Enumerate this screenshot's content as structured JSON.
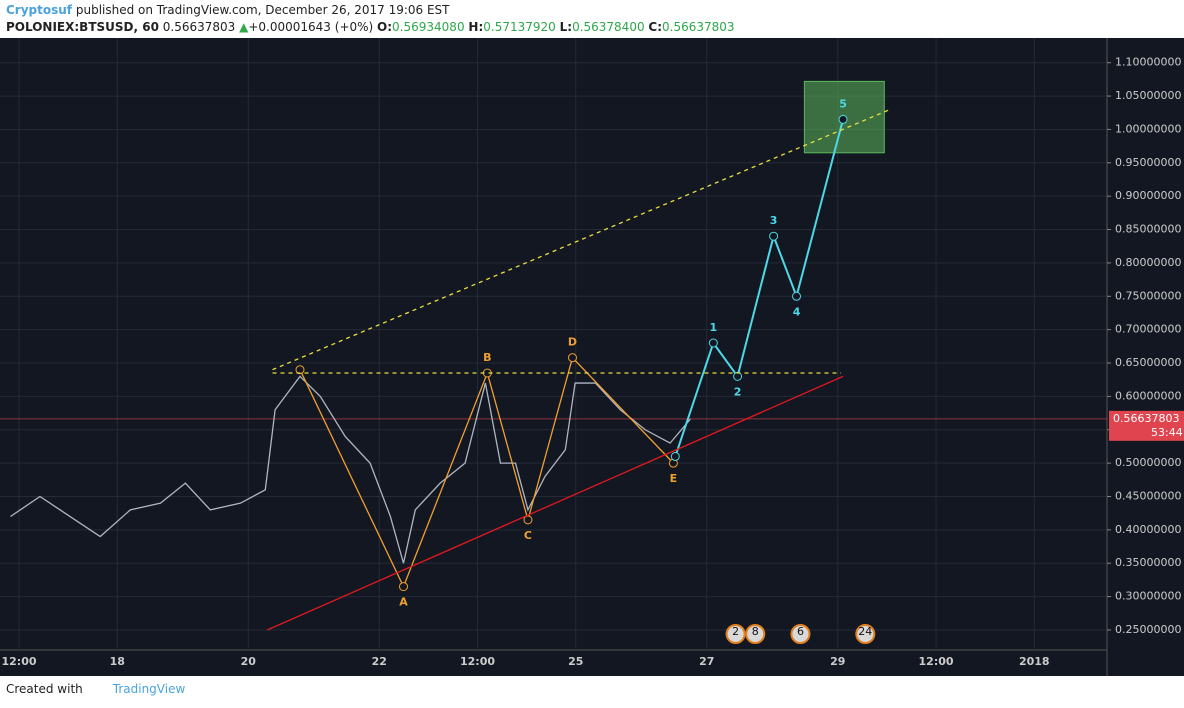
{
  "header": {
    "author": "Cryptosuf",
    "published": "published on TradingView.com, December 26, 2017 19:06 EST",
    "symbol": "POLONIEX:BTSUSD, 60",
    "last": "0.56637803",
    "arrow": "▲",
    "change": "+0.00001643 (+0%)",
    "o_label": "O:",
    "o": "0.56934080",
    "h_label": "H:",
    "h": "0.57137920",
    "l_label": "L:",
    "l": "0.56378400",
    "c_label": "C:",
    "c": "0.56637803"
  },
  "footer": {
    "created": "Created with",
    "brand": "TradingView"
  },
  "chart_data": {
    "type": "line",
    "grid": true,
    "xlim": [
      16.21,
      33.11
    ],
    "ylim": [
      0.22,
      1.149
    ],
    "xticks": [
      {
        "value": 16.5,
        "label": "12:00"
      },
      18,
      20,
      22,
      {
        "value": 23.5,
        "label": "12:00"
      },
      25,
      27,
      29,
      {
        "value": 30.5,
        "label": "12:00"
      },
      {
        "value": 32,
        "label": "2018"
      }
    ],
    "yticks": [
      {
        "value": 0.25,
        "label": "0.25000000"
      },
      {
        "value": 0.3,
        "label": "0.30000000"
      },
      {
        "value": 0.35,
        "label": "0.35000000"
      },
      {
        "value": 0.4,
        "label": "0.40000000"
      },
      {
        "value": 0.45,
        "label": "0.45000000"
      },
      {
        "value": 0.5,
        "label": "0.50000000"
      },
      {
        "value": 0.55,
        "label": "0.55000000"
      },
      {
        "value": 0.6,
        "label": "0.60000000"
      },
      {
        "value": 0.65,
        "label": "0.65000000"
      },
      {
        "value": 0.7,
        "label": "0.70000000"
      },
      {
        "value": 0.75,
        "label": "0.75000000"
      },
      {
        "value": 0.8,
        "label": "0.80000000"
      },
      {
        "value": 0.85,
        "label": "0.85000000"
      },
      {
        "value": 0.9,
        "label": "0.90000000"
      },
      {
        "value": 0.95,
        "label": "0.95000000"
      },
      {
        "value": 1.0,
        "label": "1.00000000"
      },
      {
        "value": 1.05,
        "label": "1.05000000"
      },
      {
        "value": 1.1,
        "label": "1.10000000"
      }
    ],
    "last_price": 0.56637803,
    "countdown": "53:44",
    "last_price_color": "#e0444e",
    "series": [
      {
        "color": "#aeb6c2",
        "x": [
          16.37,
          16.82,
          17.28,
          17.74,
          18.2,
          18.66,
          19.04,
          19.42,
          19.88,
          20.26,
          20.41,
          20.79,
          21.1,
          21.48,
          21.86,
          22.17,
          22.37,
          22.55,
          22.93,
          23.31,
          23.62,
          23.85,
          24.08,
          24.27,
          24.53,
          24.84,
          24.99,
          25.3,
          25.68,
          26.06,
          26.44,
          26.75
        ],
        "values": [
          0.42,
          0.45,
          0.42,
          0.39,
          0.43,
          0.44,
          0.47,
          0.43,
          0.44,
          0.46,
          0.58,
          0.63,
          0.6,
          0.54,
          0.5,
          0.42,
          0.35,
          0.43,
          0.47,
          0.5,
          0.62,
          0.5,
          0.5,
          0.43,
          0.48,
          0.52,
          0.62,
          0.62,
          0.58,
          0.55,
          0.53,
          0.566
        ]
      },
      {
        "color": "#f0a030",
        "x": [
          20.79,
          22.37,
          23.65,
          24.27,
          24.95,
          26.49
        ],
        "values": [
          0.64,
          0.315,
          0.635,
          0.415,
          0.658,
          0.5
        ],
        "point_labels": [
          null,
          "A",
          "B",
          "C",
          "D",
          "E"
        ]
      },
      {
        "color": "#4dd8e8",
        "x": [
          26.52,
          27.1,
          27.47,
          28.02,
          28.37,
          29.08
        ],
        "values": [
          0.51,
          0.68,
          0.63,
          0.84,
          0.75,
          1.015
        ],
        "point_labels": [
          null,
          "1",
          "2",
          "3",
          "4",
          "5"
        ]
      },
      {
        "color": "#e0191e",
        "x": [
          20.29,
          29.08
        ],
        "values": [
          0.25,
          0.63
        ]
      },
      {
        "color": "#e8e040",
        "dash": true,
        "x": [
          20.37,
          29.8
        ],
        "values": [
          0.64,
          1.03
        ]
      },
      {
        "color": "#e8e040",
        "dash": true,
        "x": [
          20.37,
          29.05
        ],
        "values": [
          0.635,
          0.635
        ]
      }
    ],
    "box": {
      "xlim": [
        28.49,
        29.71
      ],
      "ylim": [
        0.965,
        1.072
      ],
      "color": "#5cb85c"
    },
    "events": [
      {
        "x": 27.44,
        "label": "2"
      },
      {
        "x": 27.74,
        "label": "8"
      },
      {
        "x": 28.43,
        "label": "6"
      },
      {
        "x": 29.42,
        "label": "24"
      }
    ]
  }
}
